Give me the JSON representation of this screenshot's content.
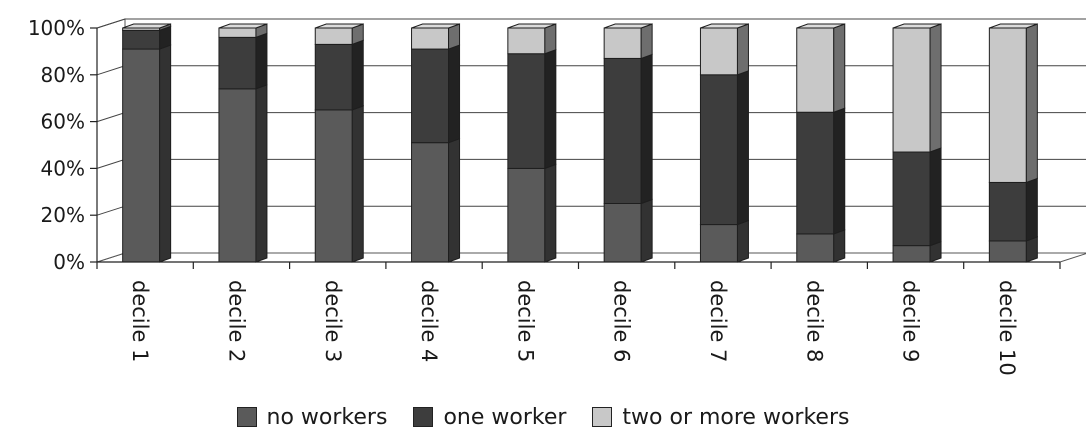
{
  "chart_data": {
    "type": "bar",
    "stacked": true,
    "percent": true,
    "three_d": true,
    "categories": [
      "decile 1",
      "decile 2",
      "decile 3",
      "decile 4",
      "decile 5",
      "decile 6",
      "decile 7",
      "decile 8",
      "decile 9",
      "decile 10"
    ],
    "series": [
      {
        "name": "no workers",
        "color": "#5a5a5a",
        "values": [
          91,
          74,
          65,
          51,
          40,
          25,
          16,
          12,
          7,
          9
        ]
      },
      {
        "name": "one worker",
        "color": "#3d3d3d",
        "values": [
          8,
          22,
          28,
          40,
          49,
          62,
          64,
          52,
          40,
          25
        ]
      },
      {
        "name": "two or more workers",
        "color": "#c8c8c8",
        "values": [
          1,
          4,
          7,
          9,
          11,
          13,
          20,
          36,
          53,
          66
        ]
      }
    ],
    "yticks": [
      "0%",
      "20%",
      "40%",
      "60%",
      "80%",
      "100%"
    ],
    "ylim": [
      0,
      100
    ],
    "grid": true,
    "legend_position": "bottom"
  }
}
